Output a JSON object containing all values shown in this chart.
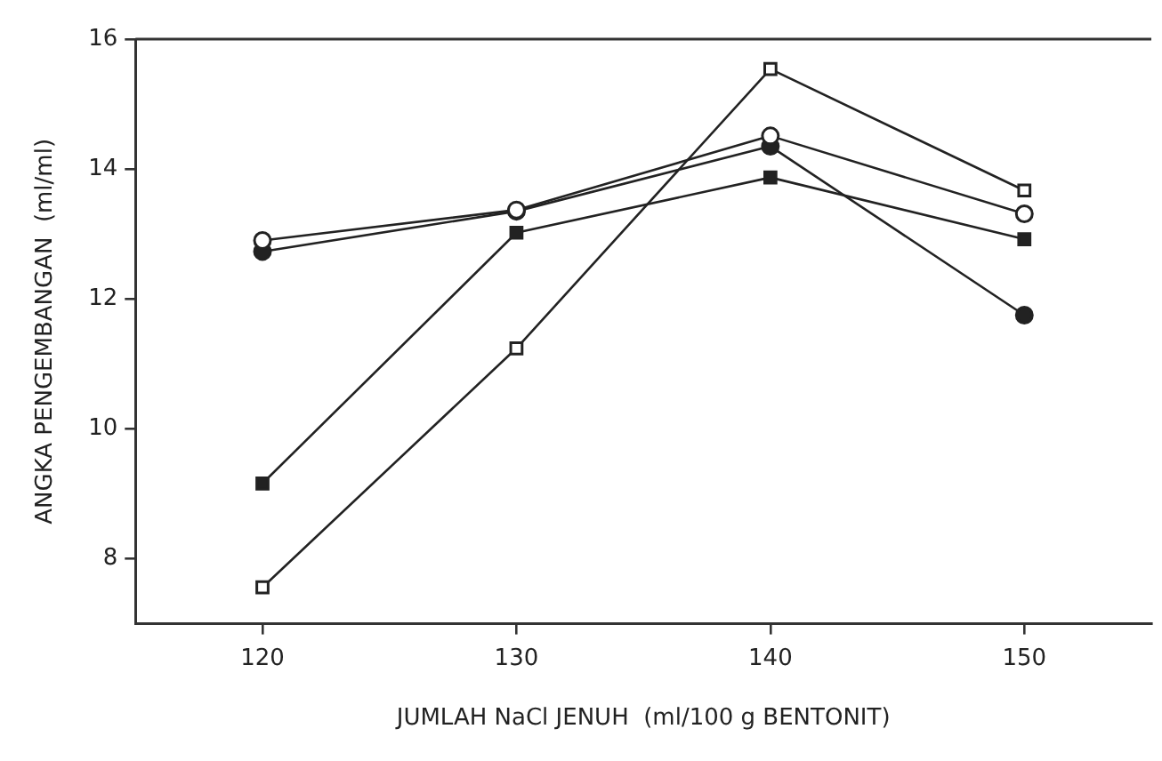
{
  "chart_data": {
    "type": "line",
    "xlabel": "JUMLAH NaCl JENUH  (ml/100 g BENTONIT)",
    "ylabel": "ANGKA PENGEMBANGAN  (ml/ml)",
    "x": [
      120,
      130,
      140,
      150
    ],
    "series": [
      {
        "color": "#222222",
        "marker": "circle",
        "values": [
          12.9,
          13.37,
          14.51,
          13.31
        ]
      },
      {
        "color": "#222222",
        "marker": "circle",
        "values": [
          12.73,
          13.35,
          14.35,
          11.75
        ]
      },
      {
        "color": "#222222",
        "marker": "square",
        "values": [
          9.16,
          13.02,
          13.87,
          12.92
        ]
      },
      {
        "color": "#222222",
        "marker": "square",
        "values": [
          7.56,
          11.24,
          15.54,
          13.67
        ]
      }
    ],
    "xlim": [
      115,
      155
    ],
    "xticks": [
      120,
      130,
      140,
      150
    ],
    "ylim": [
      7,
      16
    ],
    "yticks": [
      8,
      10,
      12,
      14,
      16
    ],
    "grid": false,
    "legend": false,
    "line_style": "solid"
  }
}
